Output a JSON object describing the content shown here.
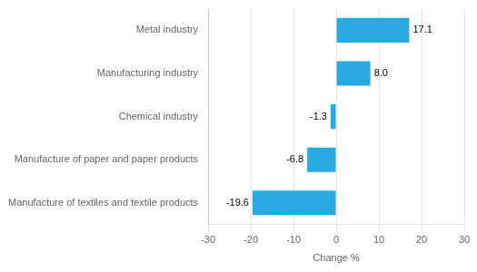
{
  "chart_data": {
    "type": "bar",
    "orientation": "horizontal",
    "categories": [
      "Manufacture of textiles and textile products",
      "Manufacture of paper and paper products",
      "Chemical industry",
      "Manufacturing industry",
      "Metal industry"
    ],
    "values": [
      -19.6,
      -6.8,
      -1.3,
      8.0,
      17.1
    ],
    "value_labels": [
      "-19.6",
      "-6.8",
      "-1.3",
      "8.0",
      "17.1"
    ],
    "color": "#29abe2",
    "xlabel": "Change %",
    "xlim": [
      -30,
      30
    ],
    "xticks": [
      -30,
      -20,
      -10,
      0,
      10,
      20,
      30
    ],
    "grid": true,
    "data_labels": true
  }
}
